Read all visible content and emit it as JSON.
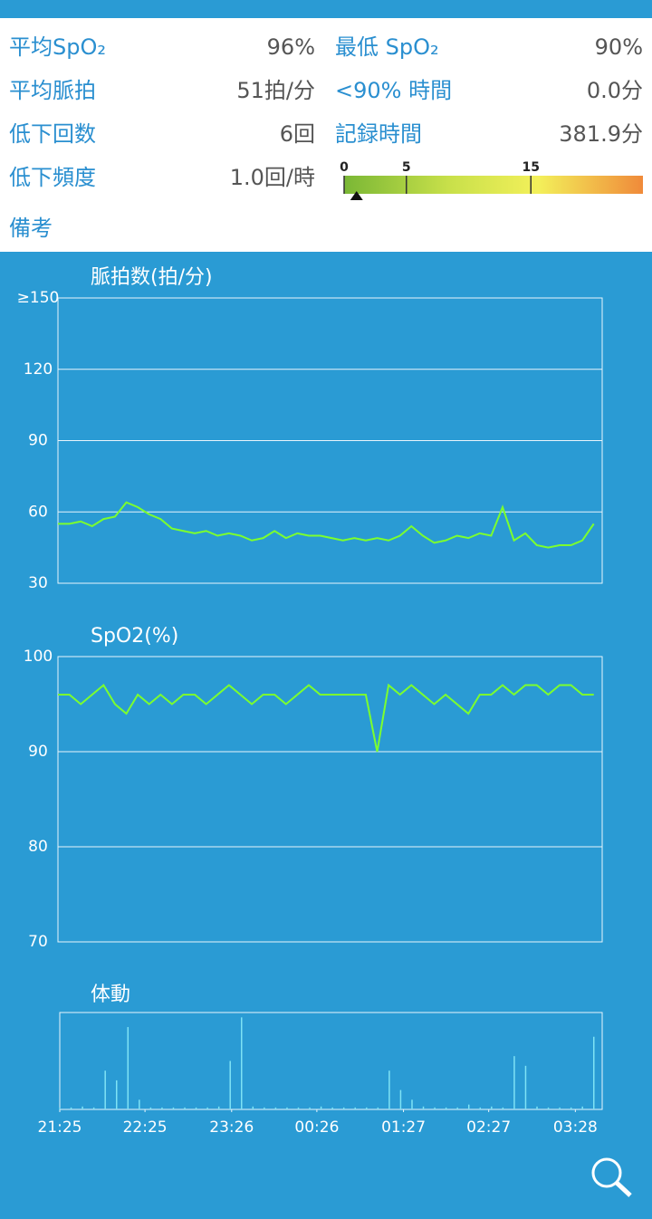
{
  "stats": {
    "left": [
      {
        "label": "平均SpO₂",
        "value": "96%"
      },
      {
        "label": "平均脈拍",
        "value": "51拍/分"
      },
      {
        "label": "低下回数",
        "value": "6回"
      },
      {
        "label": "低下頻度",
        "value": "1.0回/時"
      }
    ],
    "right": [
      {
        "label": "最低 SpO₂",
        "value": "90%"
      },
      {
        "label": "<90% 時間",
        "value": "0.0分"
      },
      {
        "label": "記録時間",
        "value": "381.9分"
      }
    ]
  },
  "odi_scale": {
    "min": 0,
    "max": 24,
    "ticks": [
      0,
      5,
      15
    ],
    "marker": 1.0
  },
  "remarks_label": "備考",
  "chart_data": [
    {
      "type": "line",
      "title": "脈拍数(拍/分)",
      "color": "#7cff2e",
      "xlim": [
        0,
        381.9
      ],
      "ylim": [
        30,
        150
      ],
      "yticks": [
        30,
        60,
        90,
        120,
        {
          "value": 150,
          "label": "≥150"
        }
      ],
      "grid": true,
      "x": [
        0,
        8,
        16,
        24,
        32,
        40,
        48,
        56,
        64,
        72,
        80,
        88,
        96,
        104,
        112,
        120,
        128,
        136,
        144,
        152,
        160,
        168,
        176,
        184,
        192,
        200,
        208,
        216,
        224,
        232,
        240,
        248,
        256,
        264,
        272,
        280,
        288,
        296,
        304,
        312,
        320,
        328,
        336,
        344,
        352,
        360,
        368,
        376
      ],
      "values": [
        55,
        55,
        56,
        54,
        57,
        58,
        64,
        62,
        59,
        57,
        53,
        52,
        51,
        52,
        50,
        51,
        50,
        48,
        49,
        52,
        49,
        51,
        50,
        50,
        49,
        48,
        49,
        48,
        49,
        48,
        50,
        54,
        50,
        47,
        48,
        50,
        49,
        51,
        50,
        62,
        48,
        51,
        46,
        45,
        46,
        46,
        48,
        55
      ]
    },
    {
      "type": "line",
      "title": "SpO2(%)",
      "color": "#7cff2e",
      "xlim": [
        0,
        381.9
      ],
      "ylim": [
        70,
        100
      ],
      "yticks": [
        70,
        80,
        90,
        100
      ],
      "grid": true,
      "x": [
        0,
        8,
        16,
        24,
        32,
        40,
        48,
        56,
        64,
        72,
        80,
        88,
        96,
        104,
        112,
        120,
        128,
        136,
        144,
        152,
        160,
        168,
        176,
        184,
        192,
        200,
        208,
        216,
        224,
        232,
        240,
        248,
        256,
        264,
        272,
        280,
        288,
        296,
        304,
        312,
        320,
        328,
        336,
        344,
        352,
        360,
        368,
        376
      ],
      "values": [
        96,
        96,
        95,
        96,
        97,
        95,
        94,
        96,
        95,
        96,
        95,
        96,
        96,
        95,
        96,
        97,
        96,
        95,
        96,
        96,
        95,
        96,
        97,
        96,
        96,
        96,
        96,
        96,
        90,
        97,
        96,
        97,
        96,
        95,
        96,
        95,
        94,
        96,
        96,
        97,
        96,
        97,
        97,
        96,
        97,
        97,
        96,
        96
      ]
    },
    {
      "type": "bar",
      "title": "体動",
      "color": "#7fe3f5",
      "xlim": [
        0,
        381.9
      ],
      "ylim": [
        0,
        100
      ],
      "xticks": [
        {
          "value": 0,
          "label": "21:25"
        },
        {
          "value": 60,
          "label": "22:25"
        },
        {
          "value": 121,
          "label": "23:26"
        },
        {
          "value": 181,
          "label": "00:26"
        },
        {
          "value": 242,
          "label": "01:27"
        },
        {
          "value": 302,
          "label": "02:27"
        },
        {
          "value": 363,
          "label": "03:28"
        }
      ],
      "x": [
        0,
        8,
        16,
        24,
        32,
        40,
        48,
        56,
        64,
        72,
        80,
        88,
        96,
        104,
        112,
        120,
        128,
        136,
        144,
        152,
        160,
        168,
        176,
        184,
        192,
        200,
        208,
        216,
        224,
        232,
        240,
        248,
        256,
        264,
        272,
        280,
        288,
        296,
        304,
        312,
        320,
        328,
        336,
        344,
        352,
        360,
        368,
        376
      ],
      "values": [
        2,
        2,
        3,
        2,
        40,
        30,
        85,
        10,
        2,
        2,
        2,
        2,
        2,
        2,
        3,
        50,
        95,
        3,
        2,
        2,
        2,
        2,
        2,
        3,
        2,
        2,
        2,
        2,
        2,
        40,
        20,
        10,
        3,
        2,
        2,
        2,
        5,
        2,
        3,
        2,
        55,
        45,
        3,
        2,
        2,
        2,
        3,
        75
      ]
    }
  ]
}
